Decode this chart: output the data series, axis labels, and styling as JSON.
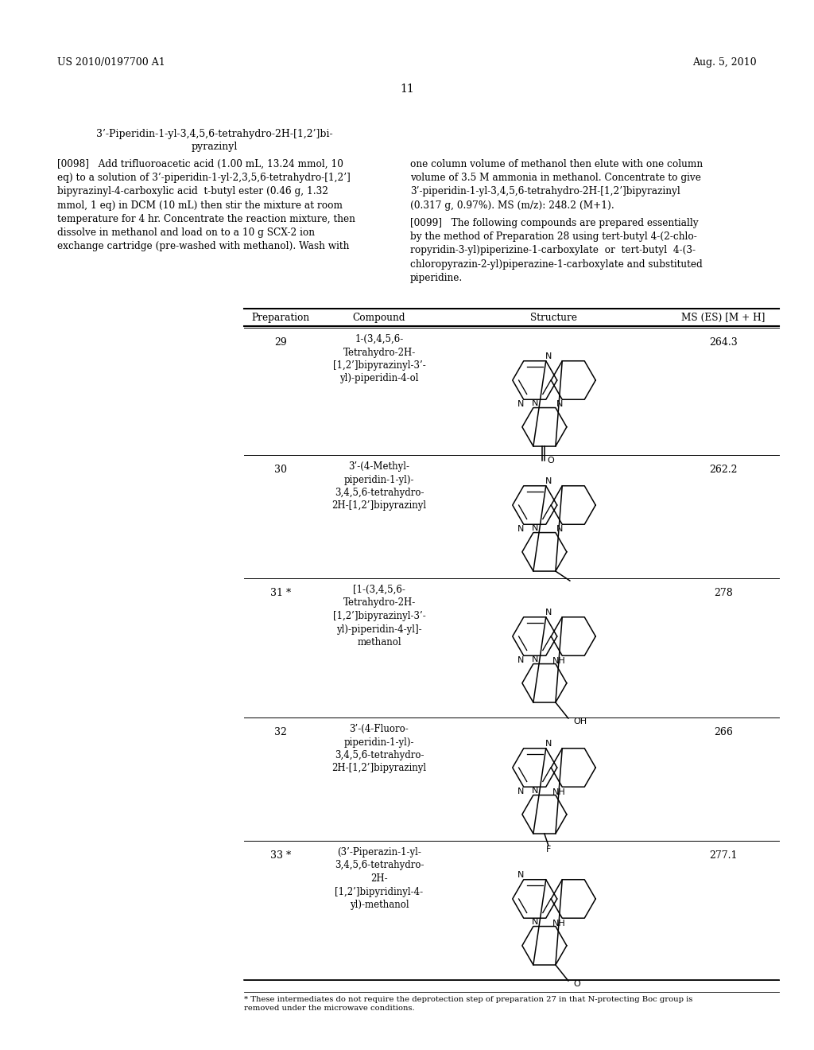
{
  "bg_color": "#ffffff",
  "header_left": "US 2010/0197700 A1",
  "header_right": "Aug. 5, 2010",
  "page_number": "11",
  "section_title_line1": "3’-Piperidin-1-yl-3,4,5,6-tetrahydro-2H-[1,2’]bi-",
  "section_title_line2": "pyrazinyl",
  "para_098_left": "[0098]   Add trifluoroacetic acid (1.00 mL, 13.24 mmol, 10\neq) to a solution of 3’-piperidin-1-yl-2,3,5,6-tetrahydro-[1,2’]\nbipyrazinyl-4-carboxylic acid  t-butyl ester (0.46 g, 1.32\nmmol, 1 eq) in DCM (10 mL) then stir the mixture at room\ntemperature for 4 hr. Concentrate the reaction mixture, then\ndissolve in methanol and load on to a 10 g SCX-2 ion\nexchange cartridge (pre-washed with methanol). Wash with",
  "para_098_right_a": "one column volume of methanol then elute with one column\nvolume of 3.5 M ammonia in methanol. Concentrate to give\n3’-piperidin-1-yl-3,4,5,6-tetrahydro-2H-[1,2’]bipyrazinyl\n(0.317 g, 0.97%). MS (m/z): 248.2 (M+1).",
  "para_099": "[0099]   The following compounds are prepared essentially\nby the method of Preparation 28 using tert-butyl 4-(2-chlo-\nropyridin-3-yl)piperizine-1-carboxylate  or  tert-butyl  4-(3-\nchloropyrazin-2-yl)piperazine-1-carboxylate and substituted\npiperidine.",
  "table_headers": [
    "Preparation",
    "Compound",
    "Structure",
    "MS (ES) [M + H]"
  ],
  "table_rows": [
    {
      "prep": "29",
      "compound": "1-(3,4,5,6-\nTetrahydro-2H-\n[1,2’]bipyrazinyl-3’-\nyl)-piperidin-4-ol",
      "ms": "264.3",
      "struct_type": "pyrazine_piperazine_piperidinone",
      "top_N": "N",
      "left_ring": "pyrazine",
      "bottom_sub": "oxo"
    },
    {
      "prep": "30",
      "compound": "3’-(4-Methyl-\npiperidin-1-yl)-\n3,4,5,6-tetrahydro-\n2H-[1,2’]bipyrazinyl",
      "ms": "262.2",
      "struct_type": "pyrazine_piperazine_piperidine_methyl",
      "top_N": "N",
      "left_ring": "pyrazine",
      "bottom_sub": "methyl"
    },
    {
      "prep": "31 *",
      "compound": "[1-(3,4,5,6-\nTetrahydro-2H-\n[1,2’]bipyrazinyl-3’-\nyl)-piperidin-4-yl]-\nmethanol",
      "ms": "278",
      "struct_type": "pyrazine_piperazine_piperidine_ch2oh",
      "top_N": "NH",
      "left_ring": "pyrazine",
      "bottom_sub": "ch2oh"
    },
    {
      "prep": "32",
      "compound": "3’-(4-Fluoro-\npiperidin-1-yl)-\n3,4,5,6-tetrahydro-\n2H-[1,2’]bipyrazinyl",
      "ms": "266",
      "struct_type": "pyrazine_piperazine_piperidine_F",
      "top_N": "NH",
      "left_ring": "pyrazine",
      "bottom_sub": "F"
    },
    {
      "prep": "33 *",
      "compound": "(3’-Piperazin-1-yl-\n3,4,5,6-tetrahydro-\n2H-\n[1,2’]bipyridinyl-4-\nyl)-methanol",
      "ms": "277.1",
      "struct_type": "pyridine_piperazine_piperidine_ch2o",
      "top_N": "NH",
      "left_ring": "pyridine",
      "bottom_sub": "ch2o"
    }
  ],
  "footnote_star": "* These intermediates do not require the deprotection step of preparation 27 in that N-protecting Boc group is\nremoved under the microwave conditions."
}
